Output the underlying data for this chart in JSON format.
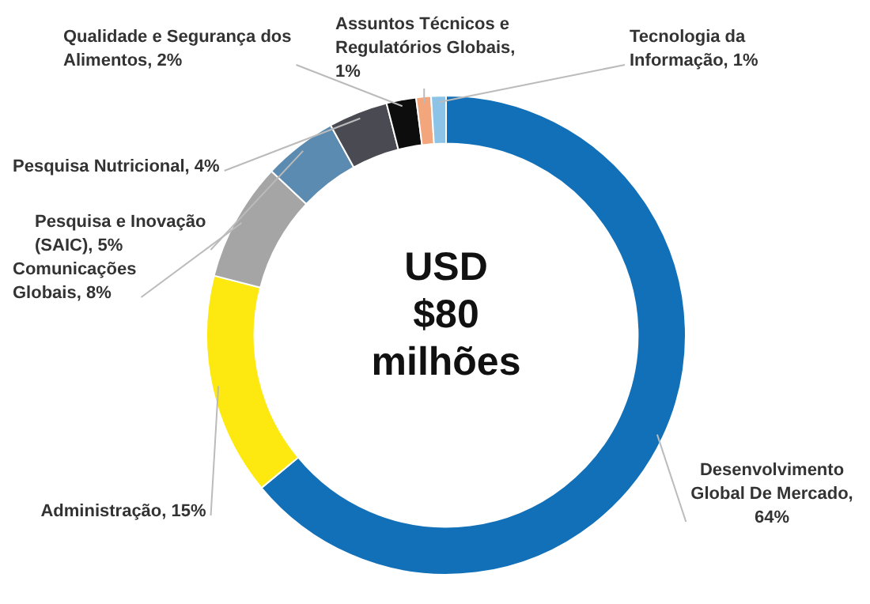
{
  "chart_data": {
    "type": "donut",
    "categories": [
      "Desenvolvimento Global De Mercado, 64%",
      "Administração, 15%",
      "Comunicações Globais, 8%",
      "Pesquisa e Inovação (SAIC), 5%",
      "Pesquisa Nutricional, 4%",
      "Qualidade e Segurança dos Alimentos, 2%",
      "Assuntos Técnicos e Regulatórios Globais, 1%",
      "Tecnologia da Informação, 1%"
    ],
    "values": [
      64,
      15,
      8,
      5,
      4,
      2,
      1,
      1
    ],
    "colors": [
      "#1170b8",
      "#fde910",
      "#a5a5a5",
      "#5b8bb0",
      "#4a4a52",
      "#0d0d0d",
      "#f3a57c",
      "#8cc3e6"
    ],
    "legend": false,
    "annotations": [
      "USD $80 milhões"
    ]
  }
}
